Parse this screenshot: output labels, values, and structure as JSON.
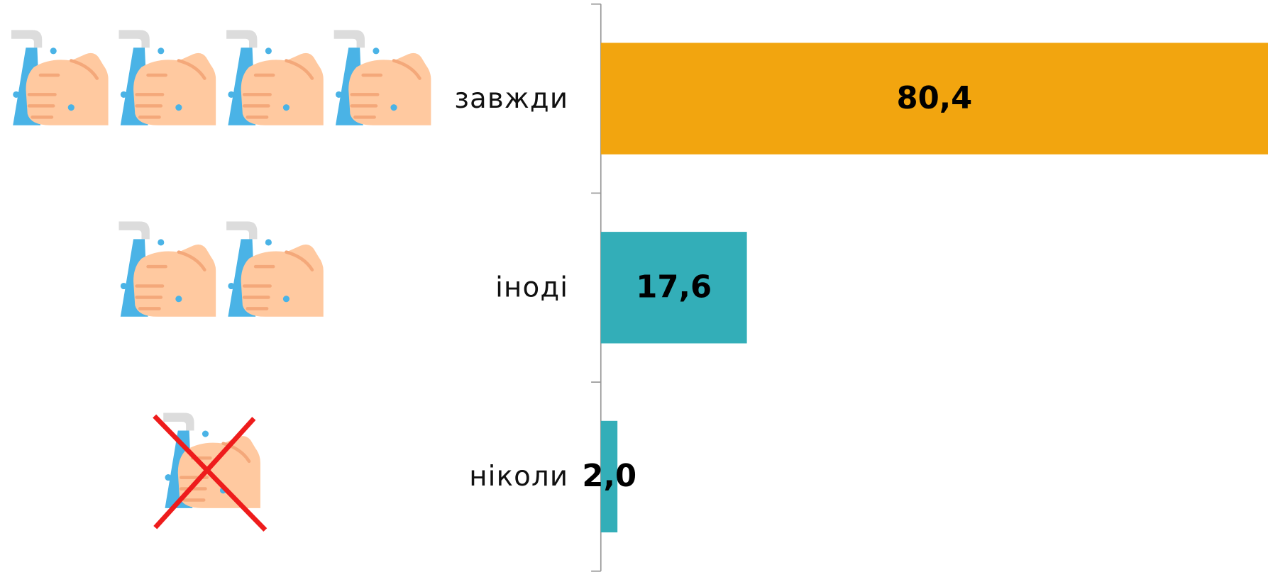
{
  "chart_data": {
    "type": "barh",
    "categories": [
      "завжди",
      "іноді",
      "ніколи"
    ],
    "values": [
      80.4,
      17.6,
      2.0
    ],
    "value_labels": [
      "80,4",
      "17,6",
      "2,0"
    ],
    "colors": [
      "#f2a50f",
      "#33aeb8",
      "#33aeb8"
    ],
    "xlim": [
      0,
      80.4
    ]
  }
}
